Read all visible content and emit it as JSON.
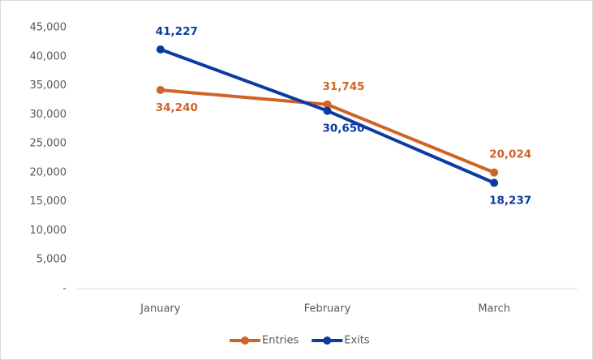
{
  "chart_data": {
    "type": "line",
    "categories": [
      "January",
      "February",
      "March"
    ],
    "series": [
      {
        "name": "Entries",
        "color": "#cf6328",
        "values": [
          34240,
          31745,
          20024
        ],
        "value_labels": [
          "34,240",
          "31,745",
          "20,024"
        ]
      },
      {
        "name": "Exits",
        "color": "#0b3b9f",
        "values": [
          41227,
          30650,
          18237
        ],
        "value_labels": [
          "41,227",
          "30,650",
          "18,237"
        ]
      }
    ],
    "ylim": [
      0,
      45000
    ],
    "yticks": [
      {
        "value": 0,
        "label": "-"
      },
      {
        "value": 5000,
        "label": "5,000"
      },
      {
        "value": 10000,
        "label": "10,000"
      },
      {
        "value": 15000,
        "label": "15,000"
      },
      {
        "value": 20000,
        "label": "20,000"
      },
      {
        "value": 25000,
        "label": "25,000"
      },
      {
        "value": 30000,
        "label": "30,000"
      },
      {
        "value": 35000,
        "label": "35,000"
      },
      {
        "value": 40000,
        "label": "40,000"
      },
      {
        "value": 45000,
        "label": "45,000"
      }
    ],
    "grid": false,
    "legend": "bottom"
  }
}
